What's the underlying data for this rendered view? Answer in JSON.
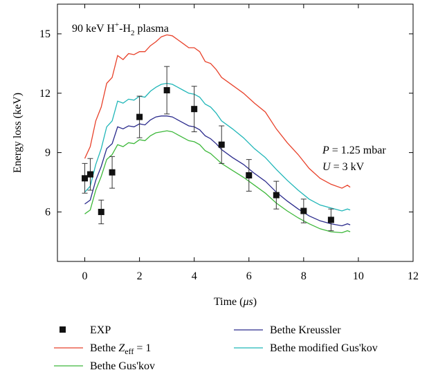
{
  "chart_data": {
    "type": "line",
    "xlabel": "Time (μs)",
    "ylabel": "Energy loss (keV)",
    "xlim": [
      -1,
      12
    ],
    "ylim": [
      3.5,
      16.5
    ],
    "xticks": [
      0,
      2,
      4,
      6,
      8,
      10,
      12
    ],
    "yticks": [
      6,
      9,
      12,
      15
    ],
    "grid": false,
    "legend_position": "bottom",
    "annotations": {
      "plasma": "90 keV H⁺-H₂ plasma",
      "pressure": "P = 1.25 mbar",
      "voltage": "U = 3 kV"
    },
    "series": [
      {
        "name": "EXP",
        "kind": "scatter",
        "color": "#111111",
        "x": [
          0,
          0.2,
          0.6,
          1.0,
          2.0,
          3.0,
          4.0,
          5.0,
          6.0,
          7.0,
          8.0,
          9.0
        ],
        "y": [
          7.7,
          7.9,
          6.0,
          8.0,
          10.8,
          12.15,
          11.2,
          9.4,
          7.85,
          6.85,
          6.05,
          5.6
        ],
        "err": [
          0.75,
          0.8,
          0.6,
          0.8,
          1.05,
          1.2,
          1.15,
          0.95,
          0.8,
          0.7,
          0.6,
          0.55
        ]
      },
      {
        "name": "Bethe Z_eff = 1",
        "kind": "line",
        "color": "#e8412a",
        "x": [
          0,
          0.2,
          0.4,
          0.6,
          0.8,
          1.0,
          1.2,
          1.4,
          1.6,
          1.8,
          2.0,
          2.2,
          2.4,
          2.6,
          2.8,
          3.0,
          3.2,
          3.4,
          3.6,
          3.8,
          4.0,
          4.2,
          4.4,
          4.6,
          4.8,
          5.0,
          5.4,
          5.8,
          6.2,
          6.6,
          7.0,
          7.4,
          7.8,
          8.2,
          8.6,
          9.0,
          9.4,
          9.6,
          9.7
        ],
        "y": [
          8.7,
          9.3,
          10.6,
          11.3,
          12.5,
          12.8,
          13.9,
          13.7,
          14.0,
          13.95,
          14.1,
          14.1,
          14.4,
          14.6,
          14.85,
          14.95,
          14.9,
          14.7,
          14.5,
          14.3,
          14.3,
          14.1,
          13.6,
          13.5,
          13.2,
          12.8,
          12.4,
          12.0,
          11.5,
          11.05,
          10.2,
          9.5,
          8.9,
          8.2,
          7.7,
          7.4,
          7.2,
          7.35,
          7.25
        ]
      },
      {
        "name": "Bethe modified Gus'kov",
        "kind": "line",
        "color": "#1fb6b8",
        "x": [
          0,
          0.2,
          0.4,
          0.6,
          0.8,
          1.0,
          1.2,
          1.4,
          1.6,
          1.8,
          2.0,
          2.2,
          2.4,
          2.6,
          2.8,
          3.0,
          3.2,
          3.4,
          3.6,
          3.8,
          4.0,
          4.2,
          4.4,
          4.6,
          4.8,
          5.0,
          5.4,
          5.8,
          6.2,
          6.6,
          7.0,
          7.4,
          7.8,
          8.2,
          8.6,
          9.0,
          9.4,
          9.6,
          9.7
        ],
        "y": [
          7.0,
          7.3,
          8.4,
          9.2,
          10.3,
          10.6,
          11.6,
          11.5,
          11.7,
          11.65,
          11.85,
          11.8,
          12.1,
          12.3,
          12.45,
          12.5,
          12.45,
          12.3,
          12.15,
          12.0,
          11.95,
          11.8,
          11.45,
          11.3,
          11.0,
          10.6,
          10.2,
          9.75,
          9.2,
          8.75,
          8.15,
          7.6,
          7.1,
          6.65,
          6.35,
          6.2,
          6.05,
          6.15,
          6.1
        ]
      },
      {
        "name": "Bethe Kreussler",
        "kind": "line",
        "color": "#2a2a8c",
        "x": [
          0,
          0.2,
          0.4,
          0.6,
          0.8,
          1.0,
          1.2,
          1.4,
          1.6,
          1.8,
          2.0,
          2.2,
          2.4,
          2.6,
          2.8,
          3.0,
          3.2,
          3.4,
          3.6,
          3.8,
          4.0,
          4.2,
          4.4,
          4.6,
          4.8,
          5.0,
          5.4,
          5.8,
          6.2,
          6.6,
          7.0,
          7.4,
          7.8,
          8.2,
          8.6,
          9.0,
          9.4,
          9.6,
          9.7
        ],
        "y": [
          6.4,
          6.6,
          7.6,
          8.3,
          9.2,
          9.45,
          10.3,
          10.2,
          10.35,
          10.3,
          10.45,
          10.4,
          10.65,
          10.8,
          10.85,
          10.85,
          10.8,
          10.65,
          10.5,
          10.35,
          10.3,
          10.15,
          9.85,
          9.7,
          9.45,
          9.15,
          8.75,
          8.4,
          7.95,
          7.55,
          7.0,
          6.55,
          6.15,
          5.8,
          5.55,
          5.4,
          5.3,
          5.4,
          5.35
        ]
      },
      {
        "name": "Bethe Gus'kov",
        "kind": "line",
        "color": "#3db83a",
        "x": [
          0,
          0.2,
          0.4,
          0.6,
          0.8,
          1.0,
          1.2,
          1.4,
          1.6,
          1.8,
          2.0,
          2.2,
          2.4,
          2.6,
          2.8,
          3.0,
          3.2,
          3.4,
          3.6,
          3.8,
          4.0,
          4.2,
          4.4,
          4.6,
          4.8,
          5.0,
          5.4,
          5.8,
          6.2,
          6.6,
          7.0,
          7.4,
          7.8,
          8.2,
          8.6,
          9.0,
          9.4,
          9.6,
          9.7
        ],
        "y": [
          5.9,
          6.1,
          7.1,
          7.8,
          8.65,
          8.9,
          9.4,
          9.3,
          9.5,
          9.45,
          9.65,
          9.6,
          9.85,
          10.0,
          10.05,
          10.1,
          10.05,
          9.9,
          9.75,
          9.6,
          9.55,
          9.4,
          9.1,
          8.95,
          8.7,
          8.45,
          8.1,
          7.75,
          7.35,
          6.95,
          6.45,
          6.05,
          5.7,
          5.4,
          5.15,
          5.0,
          4.95,
          5.05,
          5.0
        ]
      }
    ]
  },
  "legend": {
    "items": [
      {
        "label": "EXP",
        "kind": "marker",
        "color": "#111111"
      },
      {
        "label_pre": "Bethe ",
        "label_italic": "Z",
        "label_sub": "eff",
        "label_post": " = 1",
        "kind": "line",
        "color": "#e8412a"
      },
      {
        "label": "Bethe Gus'kov",
        "kind": "line",
        "color": "#3db83a"
      },
      {
        "label": "Bethe Kreussler",
        "kind": "line",
        "color": "#2a2a8c"
      },
      {
        "label": "Bethe modified Gus'kov",
        "kind": "line",
        "color": "#1fb6b8"
      }
    ]
  },
  "labels": {
    "annot_plasma_pre": "90 keV H",
    "annot_plasma_sup": "+",
    "annot_plasma_mid": "-H",
    "annot_plasma_sub": "2",
    "annot_plasma_post": " plasma",
    "p_var": "P",
    "p_rest": " = 1.25 mbar",
    "u_var": "U",
    "u_rest": " = 3 kV",
    "xlabel_pre": "Time (",
    "xlabel_unit": "μs",
    "xlabel_post": ")",
    "ylabel": "Energy loss (keV)"
  }
}
